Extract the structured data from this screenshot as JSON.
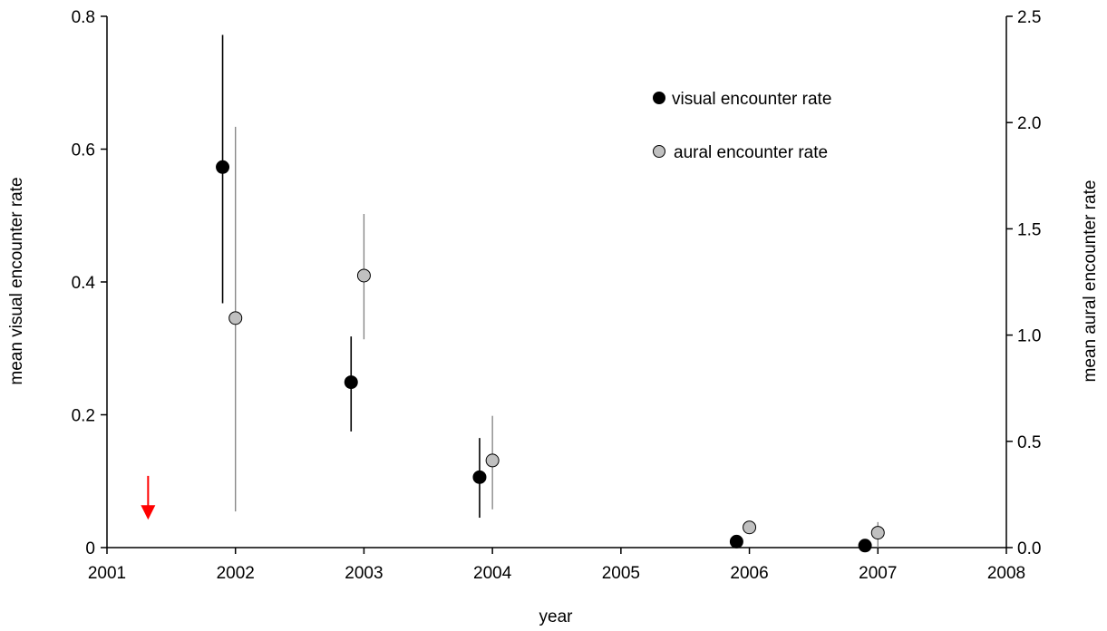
{
  "chart_data": {
    "type": "scatter",
    "title": "",
    "xlabel": "year",
    "ylabel_left": "mean visual encounter rate",
    "ylabel_right": "mean aural encounter rate",
    "xlim": [
      2001,
      2008
    ],
    "ylim_left": [
      0,
      0.8
    ],
    "ylim_right": [
      0,
      2.5
    ],
    "x_ticks": [
      2001,
      2002,
      2003,
      2004,
      2005,
      2006,
      2007,
      2008
    ],
    "x_tick_labels": [
      "2001",
      "2002",
      "2003",
      "2004",
      "2005",
      "2006",
      "2007",
      "2008"
    ],
    "y_left_ticks": [
      0,
      0.2,
      0.4,
      0.6,
      0.8
    ],
    "y_left_tick_labels": [
      "0",
      "0.2",
      "0.4",
      "0.6",
      "0.8"
    ],
    "y_right_ticks": [
      0,
      0.5,
      1.0,
      1.5,
      2.0,
      2.5
    ],
    "y_right_tick_labels": [
      "0.0",
      "0.5",
      "1.0",
      "1.5",
      "2.0",
      "2.5"
    ],
    "grid": false,
    "legend_position": "top-right",
    "series": [
      {
        "name": "visual encounter rate",
        "axis": "left",
        "marker_color": "#000000",
        "errorbar_color": "#000000",
        "points": [
          {
            "x": 2001.9,
            "y": 0.573,
            "lo": 0.368,
            "hi": 0.772
          },
          {
            "x": 2002.9,
            "y": 0.249,
            "lo": 0.175,
            "hi": 0.318
          },
          {
            "x": 2003.9,
            "y": 0.106,
            "lo": 0.045,
            "hi": 0.165
          },
          {
            "x": 2005.9,
            "y": 0.009,
            "lo": 0.009,
            "hi": 0.009
          },
          {
            "x": 2006.9,
            "y": 0.003,
            "lo": 0.003,
            "hi": 0.003
          }
        ]
      },
      {
        "name": "aural encounter rate",
        "axis": "right",
        "marker_color": "#c0c0c0",
        "errorbar_color": "#808080",
        "points": [
          {
            "x": 2002.0,
            "y": 1.08,
            "lo": 0.17,
            "hi": 1.98
          },
          {
            "x": 2003.0,
            "y": 1.28,
            "lo": 0.98,
            "hi": 1.57
          },
          {
            "x": 2004.0,
            "y": 0.41,
            "lo": 0.18,
            "hi": 0.62
          },
          {
            "x": 2006.0,
            "y": 0.095,
            "lo": 0.095,
            "hi": 0.095
          },
          {
            "x": 2007.0,
            "y": 0.07,
            "lo": 0.0,
            "hi": 0.12
          }
        ]
      }
    ],
    "annotation": {
      "type": "arrow",
      "color": "#ff0000",
      "x": 2001.32,
      "y_from": 0.108,
      "y_to": 0.042
    }
  }
}
